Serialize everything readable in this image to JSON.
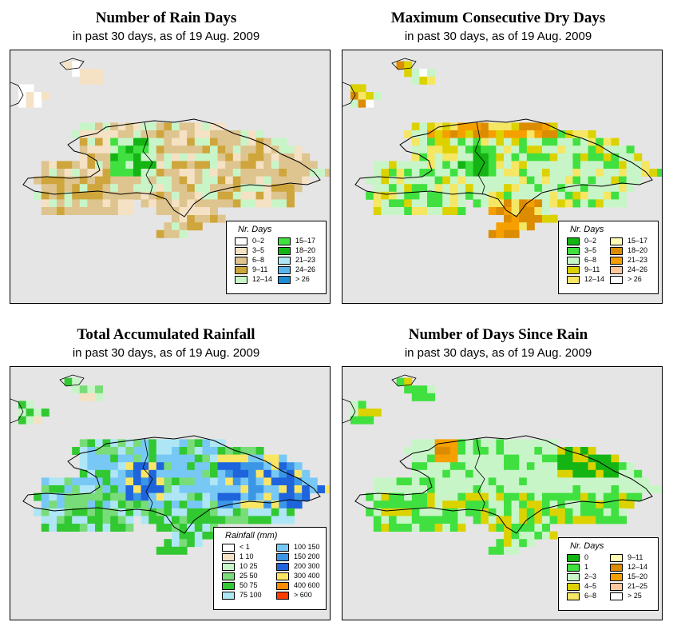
{
  "panels": [
    {
      "title": "Number of Rain Days",
      "subtitle": "in past 30 days, as of  19 Aug. 2009",
      "legend_title": "Nr. Days",
      "legend": [
        {
          "label": "0–2",
          "color": "#ffffff"
        },
        {
          "label": "3–5",
          "color": "#f5e1c4"
        },
        {
          "label": "6–8",
          "color": "#dec48e"
        },
        {
          "label": "9–11",
          "color": "#cfa63c"
        },
        {
          "label": "12–14",
          "color": "#c8f5c8"
        },
        {
          "label": "15–17",
          "color": "#40e040"
        },
        {
          "label": "18–20",
          "color": "#14b414"
        },
        {
          "label": "21–23",
          "color": "#aee6f5"
        },
        {
          "label": "24–26",
          "color": "#5ab4ec"
        },
        {
          "label": "> 26",
          "color": "#1e8cd2"
        }
      ],
      "grid": [
        "..........................................",
        ".......11........................ ........",
        "........1111.....................  .......",
        "........ 11......................   ......",
        "11...............................  .......",
        "11111............................ .......",
        "1111..............................  .....",
        "11................................  .....",
        ".........................................",
        "..........2222.2222222222222222...........",
        "........22333322232222222222222222.........",
        ".........222333333552222333222222222.......",
        ".........2222255655533333222222222222......",
        ".........2222255665523333222333223322.....",
        "....22233222555665552443442432223332222...",
        "...22223333255665544444443343333223322222.",
        "..4444333335555554444444444344444422222...",
        "...44444433322222222222222444444422222....",
        "..4444444444422222222222222222222222......",
        "...33333333333...22222222222222222222.....",
        "...33333333333....22222222................",
        ".....................2222222..............",
        ".....................2222.................",
        "....................222...................",
        ".........................................."
      ],
      "legend_box": "right"
    },
    {
      "title": "Maximum Consecutive Dry Days",
      "subtitle": "in past 30 days, as of  19 Aug. 2009",
      "legend_title": "Nr. Days",
      "legend": [
        {
          "label": "0–2",
          "color": "#14b414"
        },
        {
          "label": "3–5",
          "color": "#40e040"
        },
        {
          "label": "6–8",
          "color": "#c8f5c8"
        },
        {
          "label": "9–11",
          "color": "#dcd200"
        },
        {
          "label": "12–14",
          "color": "#f5e664"
        },
        {
          "label": "15–17",
          "color": "#fffab4"
        },
        {
          "label": "18–20",
          "color": "#dc8c00"
        },
        {
          "label": "21–23",
          "color": "#f5a000"
        },
        {
          "label": "24–26",
          "color": "#ffc8a0"
        },
        {
          "label": "> 26",
          "color": "#ffffff"
        }
      ],
      "grid": [],
      "legend_box": "right"
    },
    {
      "title": "Total Accumulated Rainfall",
      "subtitle": "in past 30 days, as of  19 Aug. 2009",
      "legend_title": "Rainfall (mm)",
      "legend": [
        {
          "label": "< 1",
          "color": "#ffffff"
        },
        {
          "label": "1    10",
          "color": "#f5e1c4"
        },
        {
          "label": "10    25",
          "color": "#c8f5c8"
        },
        {
          "label": "25    50",
          "color": "#78dc78"
        },
        {
          "label": "50    75",
          "color": "#32c832"
        },
        {
          "label": "75  100",
          "color": "#aee6f5"
        },
        {
          "label": "100  150",
          "color": "#78c8f5"
        },
        {
          "label": "150  200",
          "color": "#3c96e6"
        },
        {
          "label": "200  300",
          "color": "#1e64dc"
        },
        {
          "label": "300  400",
          "color": "#fae664"
        },
        {
          "label": "400  600",
          "color": "#ff8c00"
        },
        {
          "label": "> 600",
          "color": "#ff3c00"
        }
      ],
      "grid": [],
      "legend_box": "right"
    },
    {
      "title": "Number of Days Since Rain",
      "subtitle": "in past 30 days, as of  19 Aug. 2009",
      "legend_title": "Nr. Days",
      "legend": [
        {
          "label": "0",
          "color": "#14b414"
        },
        {
          "label": "1",
          "color": "#40e040"
        },
        {
          "label": "2–3",
          "color": "#c8f5c8"
        },
        {
          "label": "4–5",
          "color": "#dcd200"
        },
        {
          "label": "6–8",
          "color": "#f5e664"
        },
        {
          "label": "9–11",
          "color": "#fffab4"
        },
        {
          "label": "12–14",
          "color": "#dc8c00"
        },
        {
          "label": "15–20",
          "color": "#f5a000"
        },
        {
          "label": "21–25",
          "color": "#ffc8a0"
        },
        {
          "label": "> 25",
          "color": "#ffffff"
        }
      ],
      "grid": [],
      "legend_box": "right"
    }
  ]
}
